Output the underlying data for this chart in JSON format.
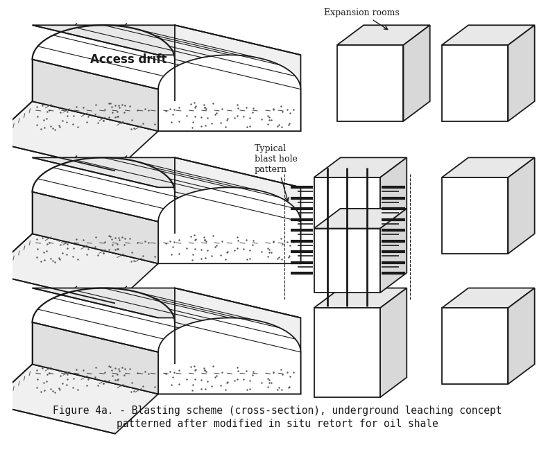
{
  "bg_color": "#ffffff",
  "line_color": "#1a1a1a",
  "caption_line1": "Figure 4a. - Blasting scheme (cross-section), underground leaching concept",
  "caption_line2": "patterned after modified in situ retort for oil shale",
  "label_access_drift": "Access drift",
  "label_expansion_rooms": "Expansion rooms",
  "label_blast_hole": "Typical\nblast hole\npattern",
  "font_size_caption": 10.5,
  "font_size_labels": 10,
  "font_size_annot": 9
}
